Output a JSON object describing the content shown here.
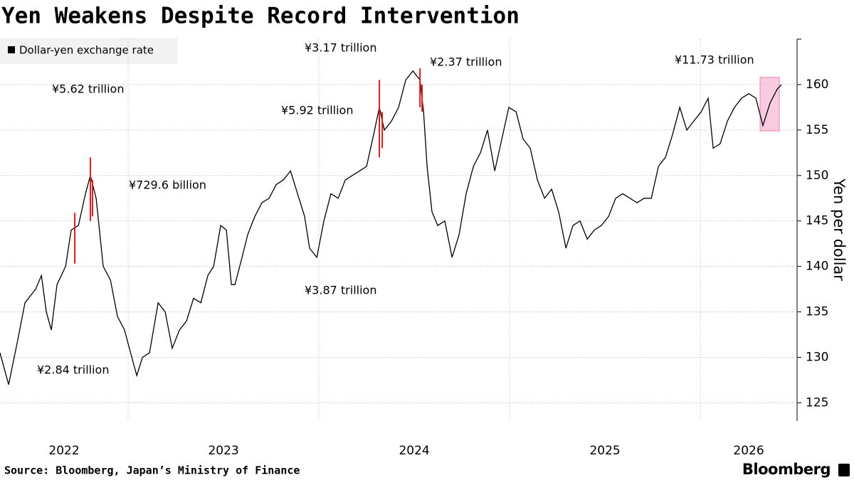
{
  "chart_data": {
    "type": "line",
    "title": "Yen Weakens Despite Record Intervention",
    "y_label": "Yen per dollar",
    "source": "Source: Bloomberg, Japan’s Ministry of Finance",
    "brand": "Bloomberg",
    "legend": "top-left",
    "grid": true,
    "x": [
      2022.328,
      2022.373,
      2022.422,
      2022.459,
      2022.515,
      2022.545,
      2022.571,
      2022.597,
      2022.627,
      2022.672,
      2022.701,
      2022.739,
      2022.776,
      2022.802,
      2022.832,
      2022.869,
      2022.907,
      2022.944,
      2022.981,
      2023.019,
      2023.045,
      2023.075,
      2023.112,
      2023.157,
      2023.194,
      2023.231,
      2023.269,
      2023.306,
      2023.343,
      2023.381,
      2023.418,
      2023.448,
      2023.485,
      2023.515,
      2023.541,
      2023.56,
      2023.597,
      2023.627,
      2023.664,
      2023.701,
      2023.739,
      2023.776,
      2023.813,
      2023.851,
      2023.888,
      2023.925,
      2023.951,
      2023.989,
      2024.026,
      2024.063,
      2024.101,
      2024.138,
      2024.175,
      2024.213,
      2024.25,
      2024.287,
      2024.317,
      2024.343,
      2024.381,
      2024.418,
      2024.455,
      2024.493,
      2024.53,
      2024.549,
      2024.567,
      2024.593,
      2024.623,
      2024.66,
      2024.698,
      2024.735,
      2024.772,
      2024.81,
      2024.847,
      2024.884,
      2024.922,
      2024.959,
      2024.996,
      2025.034,
      2025.071,
      2025.108,
      2025.146,
      2025.183,
      2025.22,
      2025.257,
      2025.295,
      2025.332,
      2025.369,
      2025.407,
      2025.444,
      2025.481,
      2025.519,
      2025.556,
      2025.593,
      2025.631,
      2025.668,
      2025.705,
      2025.743,
      2025.78,
      2025.817,
      2025.854,
      2025.892,
      2025.929,
      2025.966,
      2026.004,
      2026.041,
      2026.067,
      2026.104,
      2026.142,
      2026.179,
      2026.216,
      2026.254,
      2026.291,
      2026.328,
      2026.366,
      2026.403,
      2026.425
    ],
    "series": [
      {
        "name": "Dollar-yen exchange rate",
        "color": "#000000",
        "values": [
          130.5,
          127,
          132,
          136,
          137.5,
          139,
          135,
          133,
          138,
          140,
          144,
          144.5,
          148,
          150,
          147.5,
          140,
          138.5,
          134.5,
          133,
          130,
          128,
          130,
          130.5,
          136,
          135,
          131,
          133,
          134,
          136.5,
          136,
          139,
          140,
          144.5,
          144,
          138,
          138,
          141,
          143.5,
          145.5,
          147,
          147.5,
          149,
          149.5,
          150.5,
          148,
          145.5,
          142,
          141,
          145,
          148,
          147.5,
          149.5,
          150,
          150.5,
          151,
          154.5,
          157.5,
          155,
          156,
          157.5,
          160.5,
          161.5,
          160.5,
          157,
          151,
          146,
          144.5,
          145,
          141,
          143.5,
          148,
          151,
          152.5,
          155,
          150.5,
          154,
          157.5,
          157,
          154,
          153,
          149.5,
          147.5,
          148.5,
          146,
          142,
          144.5,
          145,
          143,
          144,
          144.5,
          145.5,
          147.5,
          148,
          147.5,
          147,
          147.5,
          147.5,
          151,
          152,
          154.5,
          157.5,
          155,
          156,
          157,
          158.5,
          153,
          153.5,
          156,
          157.5,
          158.5,
          159,
          158.5,
          155.5,
          158,
          159.5,
          160
        ]
      }
    ],
    "interventions": {
      "color": "#d21e1e",
      "x": [
        2022.72,
        2022.802,
        2022.813,
        2024.317,
        2024.332,
        2024.53,
        2024.541
      ],
      "low": [
        140.3,
        145,
        145.5,
        152,
        153,
        157.5,
        157
      ],
      "high": [
        145.9,
        152,
        149.5,
        160.5,
        157,
        161.8,
        160
      ]
    },
    "highlight": {
      "color": "#f7b5d3",
      "xlim": [
        2026.313,
        2026.414
      ],
      "ylim": [
        154.9,
        160.8
      ]
    },
    "annotations": [
      "¥3.17 trillion",
      "¥2.37 trillion",
      "¥11.73 trillion",
      "¥5.62 trillion",
      "¥5.92 trillion",
      "¥729.6 billion",
      "¥3.87 trillion",
      "¥2.84 trillion"
    ],
    "xlim": [
      2022.328,
      2026.507
    ],
    "xticks": [
      2023,
      2024,
      2025,
      2026
    ],
    "year_labels": [
      "2022",
      "2023",
      "2024",
      "2025",
      "2026"
    ],
    "ylim": [
      123,
      165
    ],
    "yticks": [
      125,
      130,
      135,
      140,
      145,
      150,
      155,
      160
    ]
  }
}
